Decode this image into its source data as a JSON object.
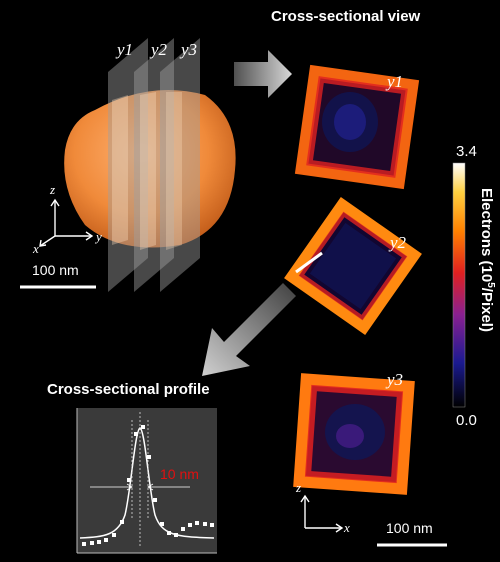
{
  "titles": {
    "cross_sectional_view": "Cross-sectional view",
    "cross_sectional_profile": "Cross-sectional profile"
  },
  "plane_labels": [
    "y1",
    "y2",
    "y3"
  ],
  "cross_section_labels": [
    "y1",
    "y2",
    "y3"
  ],
  "axes_left": {
    "z": "z",
    "x": "x",
    "y": "y"
  },
  "axes_right": {
    "z": "z",
    "x": "x"
  },
  "scale_bars": {
    "left": "100 nm",
    "right": "100 nm"
  },
  "colorbar": {
    "max": "3.4",
    "min": "0.0",
    "label_main": "Electrons (10",
    "label_sup": "5",
    "label_tail": "/Pixel)",
    "colors": [
      "#000000",
      "#2020a0",
      "#8a2090",
      "#e02020",
      "#ff8000",
      "#ffd040",
      "#ffffff"
    ]
  },
  "profile": {
    "fwhm_label": "10 nm",
    "fwhm_color": "#e01010"
  },
  "colors": {
    "particle": "#f08a3a",
    "arrow": "#b8b8b8",
    "plane": "#a0a0a0",
    "profile_bg": "#3a3a3a"
  }
}
